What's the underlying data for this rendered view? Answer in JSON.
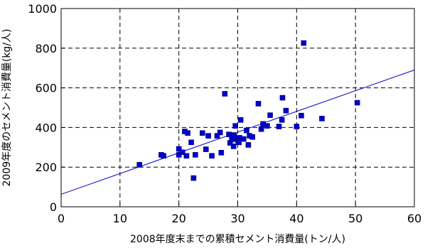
{
  "chart_data": {
    "type": "scatter",
    "title": "",
    "xlabel": "2008年度末までの累積セメント消費量(トン/人)",
    "ylabel": "2009年度のセメント消費量(kg/人)",
    "xlim": [
      0,
      60
    ],
    "ylim": [
      0,
      1000
    ],
    "x_ticks": [
      "0",
      "10",
      "20",
      "30",
      "40",
      "50",
      "60"
    ],
    "y_ticks": [
      "0",
      "200",
      "400",
      "600",
      "800",
      "1000"
    ],
    "grid": "dashed",
    "marker_color": "#0000cc",
    "trendline": {
      "color": "#0000cc",
      "y_at_x0": 63,
      "y_at_x60": 690
    },
    "points": [
      [
        13.3,
        212
      ],
      [
        17.0,
        262
      ],
      [
        17.4,
        257
      ],
      [
        20.0,
        292
      ],
      [
        20.0,
        262
      ],
      [
        20.6,
        275
      ],
      [
        21.0,
        380
      ],
      [
        21.5,
        372
      ],
      [
        21.3,
        257
      ],
      [
        22.1,
        325
      ],
      [
        22.5,
        145
      ],
      [
        22.8,
        262
      ],
      [
        24.0,
        372
      ],
      [
        24.6,
        290
      ],
      [
        25.0,
        358
      ],
      [
        25.6,
        257
      ],
      [
        26.5,
        358
      ],
      [
        27.0,
        375
      ],
      [
        27.2,
        273
      ],
      [
        27.8,
        570
      ],
      [
        28.5,
        365
      ],
      [
        28.7,
        322
      ],
      [
        29.0,
        340
      ],
      [
        29.3,
        305
      ],
      [
        29.4,
        362
      ],
      [
        29.6,
        408
      ],
      [
        29.8,
        345
      ],
      [
        30.0,
        335
      ],
      [
        30.2,
        325
      ],
      [
        30.3,
        348
      ],
      [
        30.5,
        438
      ],
      [
        31.0,
        342
      ],
      [
        31.5,
        385
      ],
      [
        31.8,
        312
      ],
      [
        32.0,
        358
      ],
      [
        32.5,
        352
      ],
      [
        33.5,
        520
      ],
      [
        34.0,
        392
      ],
      [
        34.3,
        418
      ],
      [
        35.0,
        408
      ],
      [
        35.5,
        462
      ],
      [
        37.0,
        405
      ],
      [
        37.5,
        438
      ],
      [
        37.6,
        550
      ],
      [
        38.2,
        485
      ],
      [
        40.0,
        405
      ],
      [
        40.8,
        460
      ],
      [
        41.2,
        826
      ],
      [
        44.3,
        445
      ],
      [
        50.3,
        525
      ]
    ]
  }
}
